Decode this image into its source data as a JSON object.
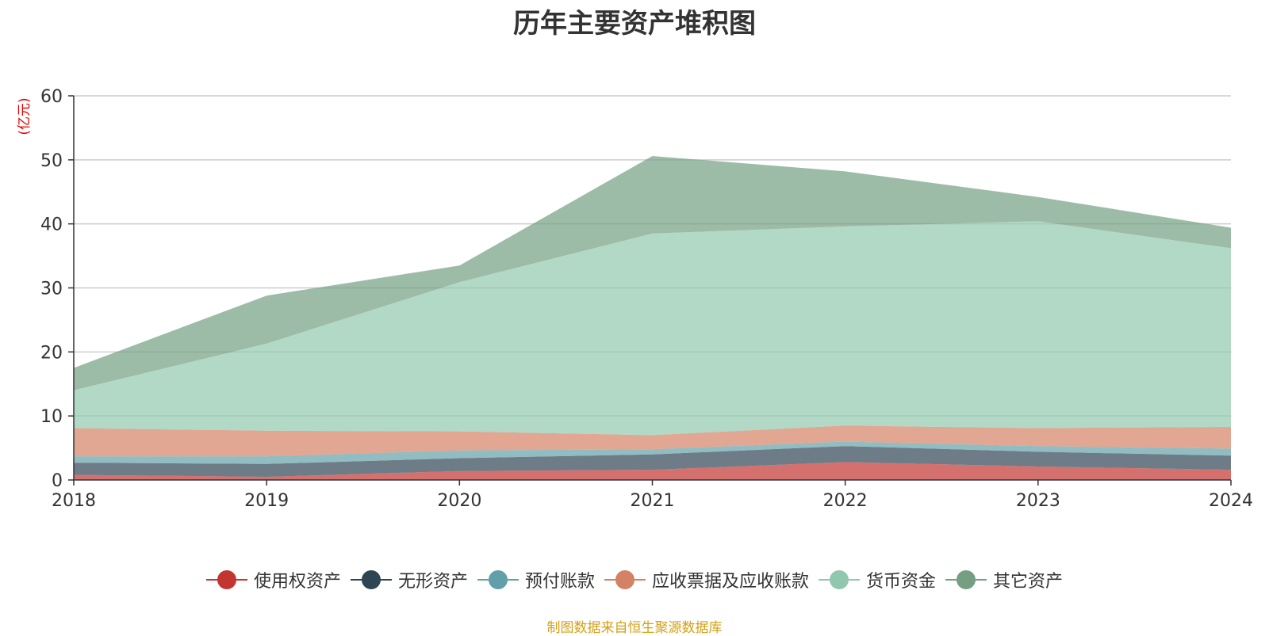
{
  "chart_data": {
    "type": "area",
    "title": "历年主要资产堆积图",
    "ylabel": "(亿元)",
    "xlabel": "",
    "ylim": [
      0,
      60
    ],
    "y_ticks": [
      0,
      10,
      20,
      30,
      40,
      50,
      60
    ],
    "grid": true,
    "stacked": true,
    "legend_position": "bottom",
    "categories": [
      "2018",
      "2019",
      "2020",
      "2021",
      "2022",
      "2023",
      "2024"
    ],
    "series": [
      {
        "name": "使用权资产",
        "color": "#c23531",
        "values": [
          0.8,
          0.5,
          1.4,
          1.6,
          2.8,
          2.1,
          1.6
        ]
      },
      {
        "name": "无形资产",
        "color": "#2f4554",
        "values": [
          1.9,
          2.0,
          2.0,
          2.4,
          2.5,
          2.3,
          2.2
        ]
      },
      {
        "name": "预付账款",
        "color": "#61a0a8",
        "values": [
          1.0,
          1.2,
          1.2,
          0.8,
          0.7,
          0.9,
          1.1
        ]
      },
      {
        "name": "应收票据及应收账款",
        "color": "#d48265",
        "values": [
          4.4,
          4.0,
          3.0,
          2.2,
          2.5,
          2.8,
          3.4
        ]
      },
      {
        "name": "货币资金",
        "color": "#91c7ae",
        "values": [
          5.9,
          13.6,
          23.3,
          31.5,
          31.1,
          32.3,
          27.9
        ]
      },
      {
        "name": "其它资产",
        "color": "#749f83",
        "values": [
          3.5,
          7.5,
          2.6,
          12.1,
          8.6,
          3.8,
          3.2
        ]
      }
    ]
  },
  "source_note": "制图数据来自恒生聚源数据库"
}
